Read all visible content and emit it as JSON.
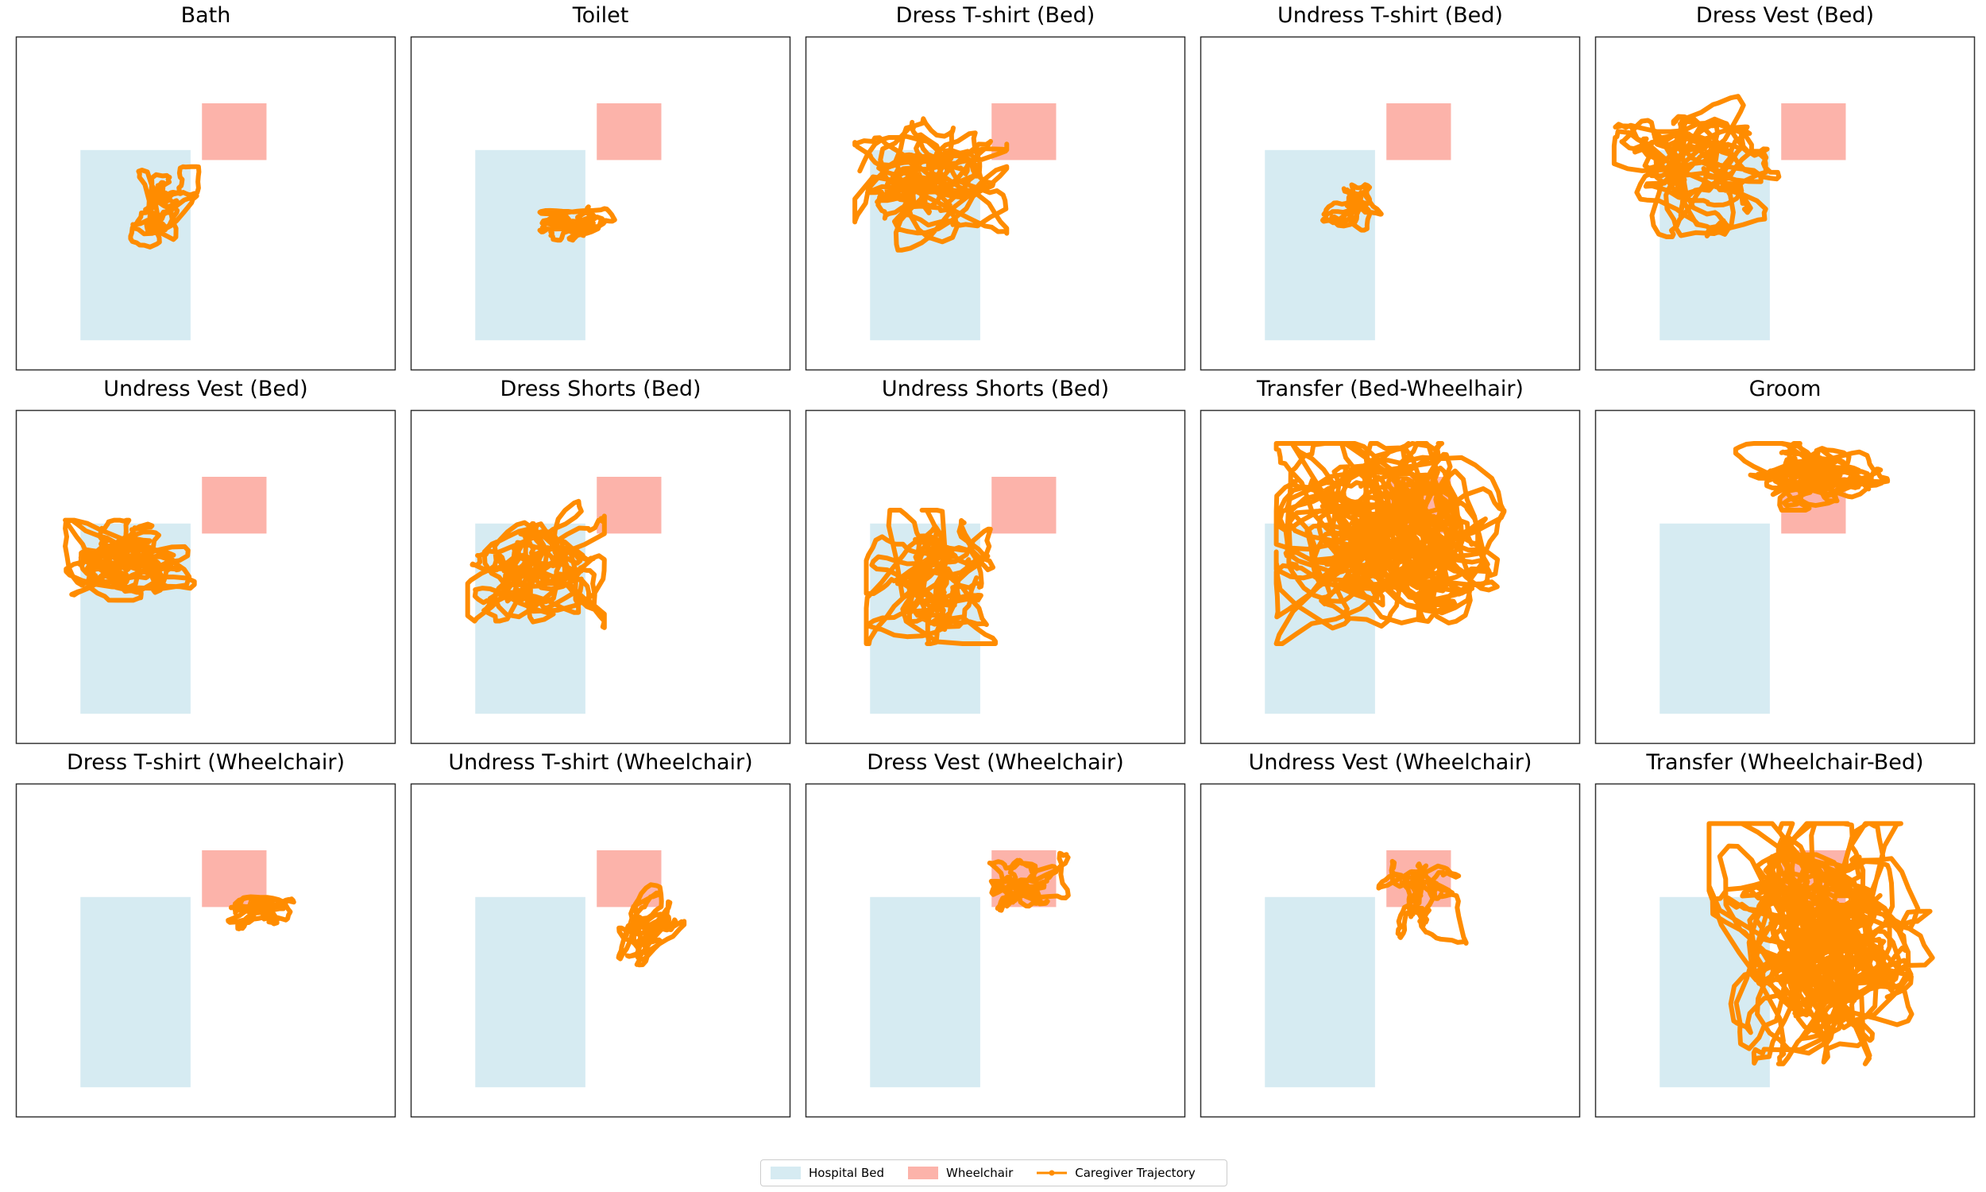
{
  "chart_data": {
    "type": "line",
    "colors": {
      "bed": "#add8e6",
      "wheelchair": "#fa8072",
      "trajectory": "#ff8c00",
      "frame": "#333333"
    },
    "scene": {
      "bed": {
        "x0": 0.17,
        "x1": 0.46,
        "y0": 0.09,
        "y1": 0.66
      },
      "wheelchair": {
        "x0": 0.49,
        "x1": 0.66,
        "y0": 0.63,
        "y1": 0.8
      }
    },
    "legend": {
      "placement": "bottom-center",
      "entries": [
        {
          "label": "Hospital Bed",
          "kind": "patch",
          "color": "#add8e6"
        },
        {
          "label": "Wheelchair",
          "kind": "patch",
          "color": "#fa8072"
        },
        {
          "label": "Caregiver Trajectory",
          "kind": "line",
          "color": "#ff8c00"
        }
      ]
    },
    "panels": [
      {
        "title": "Bath",
        "cx": 0.39,
        "cy": 0.48,
        "rx": 0.1,
        "ry": 0.13,
        "loops": 0
      },
      {
        "title": "Toilet",
        "cx": 0.44,
        "cy": 0.44,
        "rx": 0.1,
        "ry": 0.05,
        "loops": 0
      },
      {
        "title": "Dress T-shirt (Bed)",
        "cx": 0.33,
        "cy": 0.56,
        "rx": 0.2,
        "ry": 0.2,
        "loops": 1
      },
      {
        "title": "Undress T-shirt (Bed)",
        "cx": 0.4,
        "cy": 0.5,
        "rx": 0.08,
        "ry": 0.08,
        "loops": 0
      },
      {
        "title": "Dress Vest (Bed)",
        "cx": 0.27,
        "cy": 0.62,
        "rx": 0.22,
        "ry": 0.22,
        "loops": 1
      },
      {
        "title": "Undress Vest (Bed)",
        "cx": 0.3,
        "cy": 0.55,
        "rx": 0.17,
        "ry": 0.12,
        "loops": 1
      },
      {
        "title": "Dress Shorts (Bed)",
        "cx": 0.33,
        "cy": 0.52,
        "rx": 0.18,
        "ry": 0.21,
        "loops": 1
      },
      {
        "title": "Undress Shorts (Bed)",
        "cx": 0.33,
        "cy": 0.5,
        "rx": 0.17,
        "ry": 0.2,
        "loops": 1
      },
      {
        "title": "Transfer (Bed-Wheelhair)",
        "cx": 0.5,
        "cy": 0.6,
        "rx": 0.3,
        "ry": 0.3,
        "loops": 4
      },
      {
        "title": "Groom",
        "cx": 0.57,
        "cy": 0.8,
        "rx": 0.2,
        "ry": 0.1,
        "loops": 1
      },
      {
        "title": "Dress T-shirt (Wheelchair)",
        "cx": 0.66,
        "cy": 0.62,
        "rx": 0.12,
        "ry": 0.08,
        "loops": 0
      },
      {
        "title": "Undress T-shirt (Wheelchair)",
        "cx": 0.62,
        "cy": 0.55,
        "rx": 0.1,
        "ry": 0.15,
        "loops": 0
      },
      {
        "title": "Dress Vest (Wheelchair)",
        "cx": 0.58,
        "cy": 0.7,
        "rx": 0.12,
        "ry": 0.12,
        "loops": 0
      },
      {
        "title": "Undress Vest (Wheelchair)",
        "cx": 0.58,
        "cy": 0.66,
        "rx": 0.12,
        "ry": 0.14,
        "loops": 0
      },
      {
        "title": "Transfer (Wheelchair-Bed)",
        "cx": 0.6,
        "cy": 0.52,
        "rx": 0.3,
        "ry": 0.36,
        "loops": 4
      }
    ]
  }
}
